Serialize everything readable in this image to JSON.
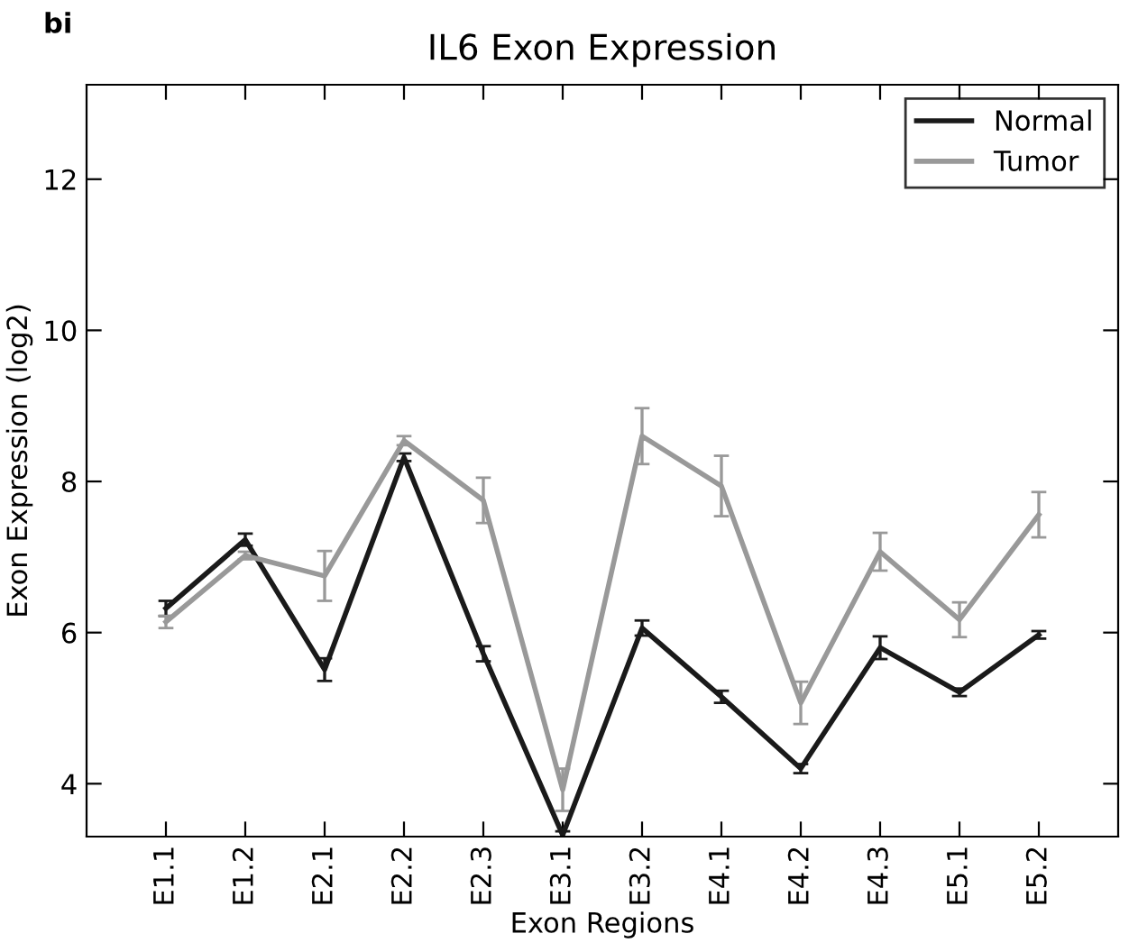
{
  "chart_data": {
    "type": "line",
    "title": "IL6 Exon Expression",
    "xlabel": "Exon Regions",
    "ylabel": "Exon Expression (log2)",
    "annotations": [
      "bi"
    ],
    "categories": [
      "E1.1",
      "E1.2",
      "E2.1",
      "E2.2",
      "E2.3",
      "E3.1",
      "E3.2",
      "E4.1",
      "E4.2",
      "E4.3",
      "E5.1",
      "E5.2"
    ],
    "series": [
      {
        "name": "Normal",
        "color": "#1a1a1a",
        "values": [
          6.32,
          7.23,
          5.51,
          8.32,
          5.72,
          3.32,
          6.06,
          5.15,
          4.2,
          5.8,
          5.21,
          5.97
        ],
        "errors": [
          0.1,
          0.08,
          0.15,
          0.05,
          0.1,
          0.05,
          0.1,
          0.08,
          0.06,
          0.15,
          0.05,
          0.05
        ]
      },
      {
        "name": "Tumor",
        "color": "#999999",
        "values": [
          6.14,
          7.02,
          6.75,
          8.54,
          7.75,
          3.92,
          8.6,
          7.94,
          5.07,
          7.07,
          6.17,
          7.56
        ],
        "errors": [
          0.08,
          0.05,
          0.33,
          0.06,
          0.3,
          0.28,
          0.37,
          0.4,
          0.28,
          0.25,
          0.23,
          0.3
        ]
      }
    ],
    "ylim": [
      3.3,
      13.25
    ],
    "yticks": [
      4,
      6,
      8,
      10,
      12
    ],
    "grid": false,
    "legend": "top right",
    "marker": "none",
    "line_style": "solid"
  }
}
